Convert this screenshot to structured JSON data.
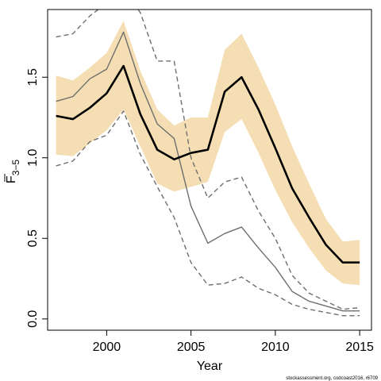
{
  "chart_data": {
    "type": "line",
    "xlabel": "Year",
    "ylabel": "F",
    "ylabel_subscript": "3−5",
    "xlim": [
      1996.5,
      2015.7
    ],
    "ylim": [
      -0.07,
      1.92
    ],
    "xticks": [
      2000,
      2005,
      2010,
      2015
    ],
    "yticks": [
      0.0,
      0.5,
      1.0,
      1.5
    ],
    "ytick_labels": [
      "0.0",
      "0.5",
      "1.0",
      "1.5"
    ],
    "x": [
      1997,
      1998,
      1999,
      2000,
      2001,
      2002,
      2003,
      2004,
      2005,
      2006,
      2007,
      2008,
      2009,
      2010,
      2011,
      2012,
      2013,
      2014,
      2015
    ],
    "band": {
      "color": "#f5deb3",
      "lower": [
        1.02,
        1.01,
        1.09,
        1.17,
        1.3,
        1.07,
        0.84,
        0.79,
        0.82,
        0.85,
        1.16,
        1.24,
        1.03,
        0.8,
        0.6,
        0.44,
        0.3,
        0.22,
        0.21
      ],
      "upper": [
        1.51,
        1.48,
        1.56,
        1.65,
        1.85,
        1.54,
        1.3,
        1.2,
        1.25,
        1.25,
        1.67,
        1.77,
        1.56,
        1.33,
        1.07,
        0.84,
        0.62,
        0.48,
        0.49
      ]
    },
    "series": [
      {
        "style": "solid-thick",
        "color": "#000000",
        "values": [
          1.26,
          1.24,
          1.31,
          1.4,
          1.57,
          1.27,
          1.05,
          0.99,
          1.03,
          1.05,
          1.41,
          1.5,
          1.3,
          1.06,
          0.81,
          0.63,
          0.46,
          0.35,
          0.35
        ]
      },
      {
        "style": "solid-thin",
        "color": "#6e6e6e",
        "values": [
          1.35,
          1.38,
          1.49,
          1.55,
          1.78,
          1.46,
          1.21,
          1.12,
          0.7,
          0.47,
          0.53,
          0.57,
          0.44,
          0.32,
          0.17,
          0.11,
          0.08,
          0.05,
          0.05
        ]
      },
      {
        "style": "dashed",
        "color": "#6e6e6e",
        "values": [
          1.75,
          1.77,
          1.88,
          1.96,
          2.05,
          1.9,
          1.6,
          1.6,
          1.0,
          0.75,
          0.85,
          0.88,
          0.67,
          0.5,
          0.27,
          0.16,
          0.11,
          0.06,
          0.07
        ]
      },
      {
        "style": "dashed",
        "color": "#6e6e6e",
        "values": [
          0.95,
          0.98,
          1.1,
          1.14,
          1.29,
          1.02,
          0.82,
          0.63,
          0.35,
          0.21,
          0.22,
          0.26,
          0.19,
          0.15,
          0.09,
          0.06,
          0.04,
          0.02,
          0.02
        ]
      }
    ],
    "grid": false,
    "legend": "none"
  },
  "footnote": "stockassessment.org, codcoast2016, r6709"
}
